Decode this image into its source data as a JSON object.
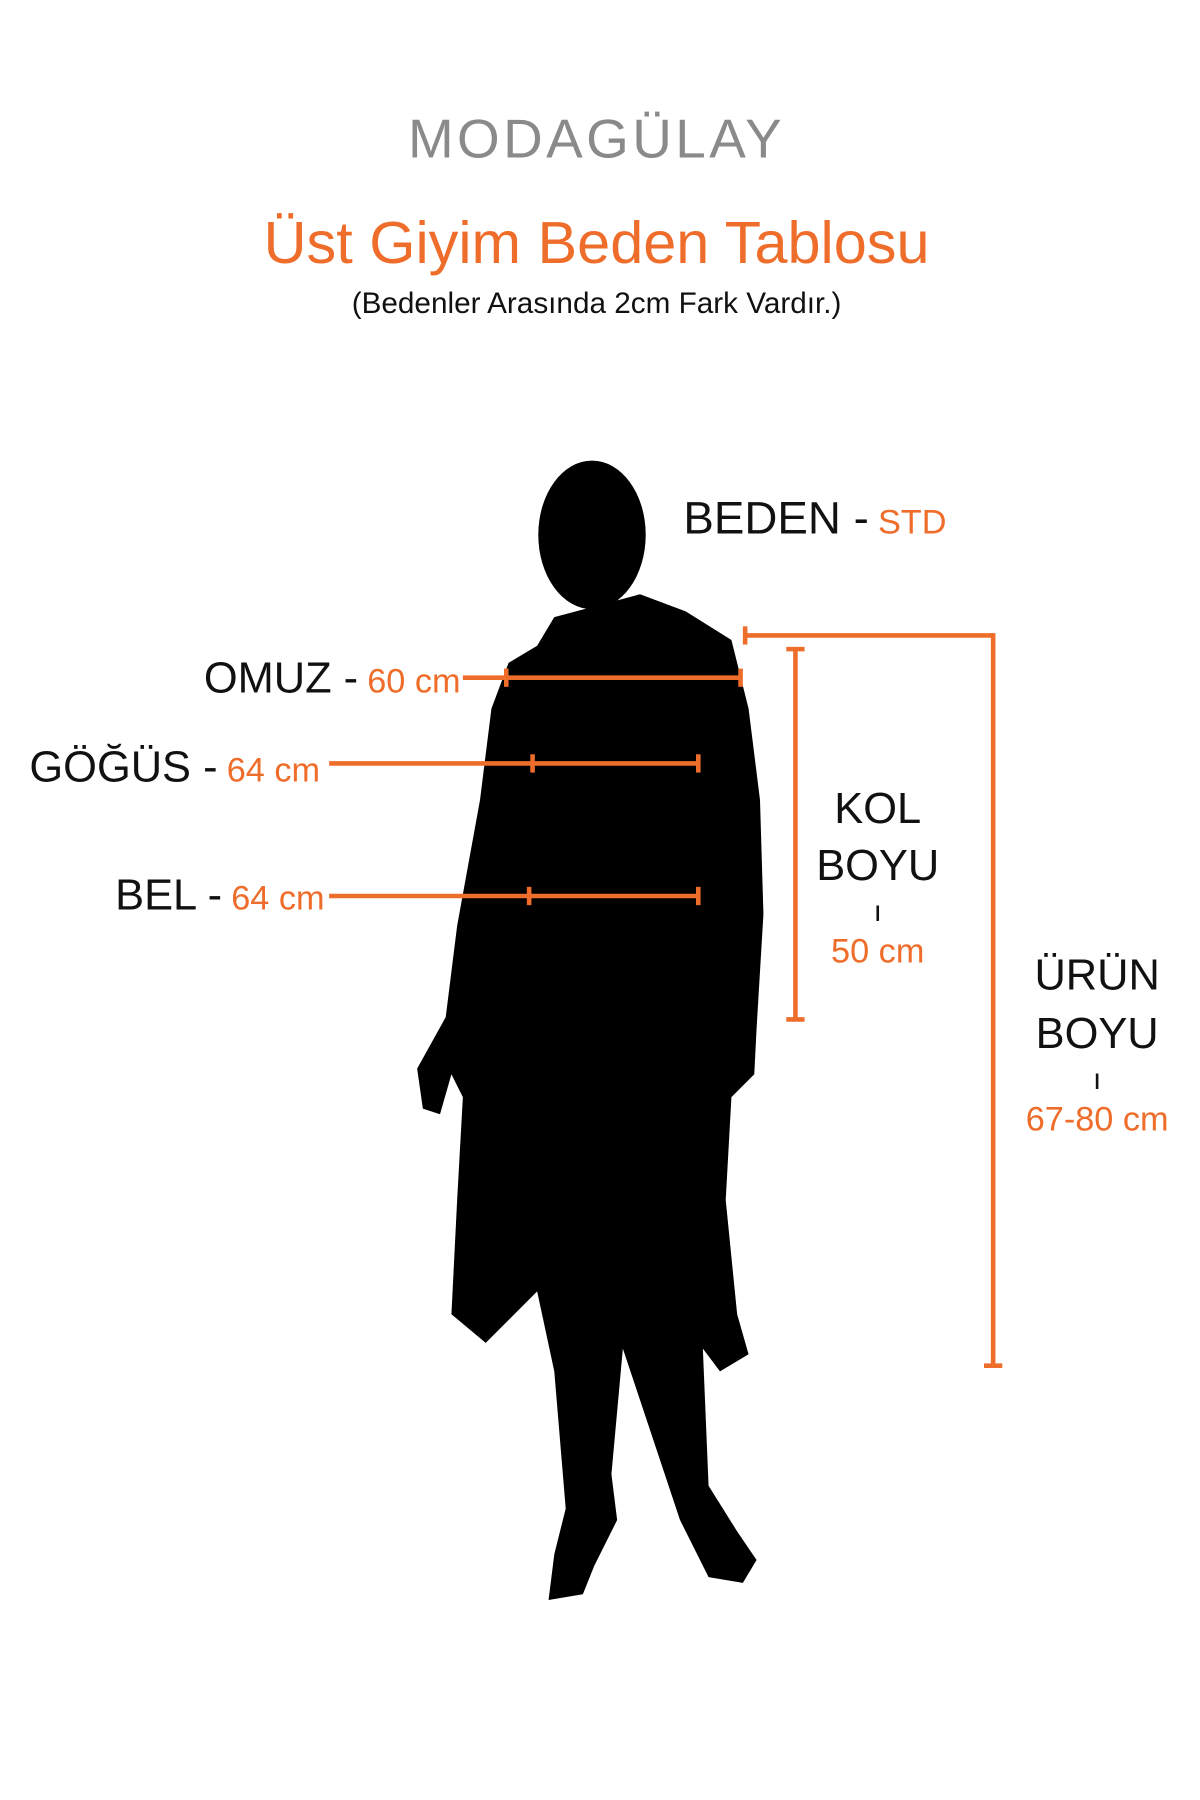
{
  "brand": {
    "logo": "MODAGÜLAY"
  },
  "header": {
    "title": "Üst Giyim Beden Tablosu",
    "subtitle": "(Bedenler Arasında 2cm Fark Vardır.)"
  },
  "measurements": {
    "beden": {
      "label": "BEDEN -",
      "value": "STD"
    },
    "omuz": {
      "label": "OMUZ -",
      "value": "60 cm"
    },
    "gogus": {
      "label": "GÖĞÜS -",
      "value": "64 cm"
    },
    "bel": {
      "label": "BEL -",
      "value": "64 cm"
    },
    "kol_boyu": {
      "label_line1": "KOL",
      "label_line2": "BOYU",
      "separator": "ı",
      "value": "50 cm"
    },
    "urun_boyu": {
      "label_line1": "ÜRÜN",
      "label_line2": "BOYU",
      "separator": "ı",
      "value": "67-80 cm"
    }
  },
  "colors": {
    "accent": "#ef6d2b",
    "logo": "#8a8a8a",
    "text": "#111111"
  }
}
